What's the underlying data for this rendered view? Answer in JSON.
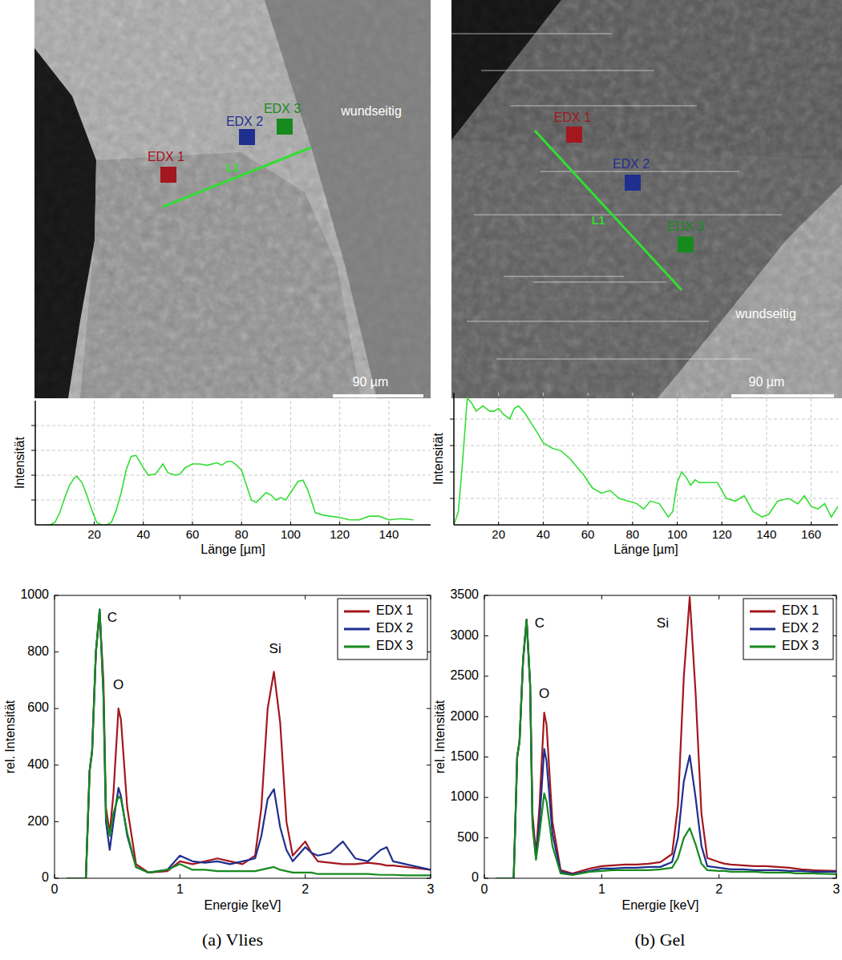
{
  "figure": {
    "panels": [
      {
        "caption": "(a) Vlies",
        "image": {
          "markers": [
            "EDX 1",
            "EDX 2",
            "EDX 3"
          ],
          "line_label": "L1",
          "side_label": "wundseitig",
          "scale_bar": "90 µm"
        }
      },
      {
        "caption": "(b) Gel",
        "image": {
          "markers": [
            "EDX 1",
            "EDX 2",
            "EDX 3"
          ],
          "line_label": "L1",
          "side_label": "wundseitig",
          "scale_bar": "90 µm"
        }
      }
    ]
  },
  "chart_data": [
    {
      "type": "line",
      "xlabel": "Länge [µm]",
      "ylabel": "Intensität",
      "color": "#33dd33",
      "grid": true,
      "tick_labels": "x",
      "xlim": [
        -4,
        157
      ],
      "xticks": [
        20,
        40,
        60,
        80,
        100,
        120,
        140
      ],
      "ylim": [
        0,
        5
      ],
      "yticks": [
        1,
        2,
        3,
        4
      ],
      "x": [
        0,
        2,
        4,
        6,
        8,
        10,
        12,
        13,
        15,
        17,
        19,
        21,
        23,
        25,
        27,
        29,
        31,
        33,
        35,
        37,
        40,
        42,
        45,
        48,
        50,
        53,
        55,
        57,
        60,
        63,
        66,
        70,
        72,
        74,
        76,
        78,
        80,
        82,
        84,
        86,
        88,
        90,
        92,
        94,
        96,
        98,
        100,
        103,
        105,
        107,
        110,
        113,
        116,
        120,
        124,
        128,
        132,
        136,
        140,
        145,
        150
      ],
      "values": [
        0,
        0,
        0.1,
        0.5,
        1.1,
        1.6,
        1.9,
        1.95,
        1.7,
        1.2,
        0.6,
        0.1,
        0,
        0,
        0.1,
        0.6,
        1.3,
        2.2,
        2.75,
        2.8,
        2.3,
        2.0,
        2.05,
        2.45,
        2.1,
        2.0,
        2.05,
        2.3,
        2.45,
        2.45,
        2.4,
        2.5,
        2.4,
        2.55,
        2.55,
        2.4,
        2.2,
        1.6,
        1.0,
        0.9,
        1.1,
        1.3,
        1.2,
        1.0,
        1.1,
        1.0,
        1.3,
        1.75,
        1.8,
        1.4,
        0.5,
        0.4,
        0.35,
        0.3,
        0.2,
        0.2,
        0.35,
        0.35,
        0.2,
        0.25,
        0.2
      ]
    },
    {
      "type": "line",
      "xlabel": "Länge [µm]",
      "ylabel": "Intensität",
      "color": "#33dd33",
      "grid": true,
      "tick_labels": "x",
      "xlim": [
        0,
        172
      ],
      "xticks": [
        20,
        40,
        60,
        80,
        100,
        120,
        140,
        160
      ],
      "ylim": [
        0,
        5
      ],
      "yticks": [
        1,
        2,
        3,
        4
      ],
      "x": [
        0,
        2,
        4,
        6,
        8,
        10,
        13,
        16,
        18,
        20,
        22,
        25,
        27,
        29,
        32,
        35,
        38,
        40,
        44,
        48,
        52,
        55,
        58,
        62,
        66,
        70,
        74,
        78,
        82,
        85,
        88,
        92,
        96,
        98,
        100,
        102,
        104,
        106,
        108,
        110,
        114,
        118,
        122,
        126,
        130,
        134,
        138,
        141,
        145,
        150,
        154,
        157,
        160,
        163,
        166,
        169,
        172
      ],
      "values": [
        0,
        0.5,
        2.5,
        4.8,
        4.6,
        4.3,
        4.5,
        4.3,
        4.3,
        4.4,
        4.2,
        4.0,
        4.4,
        4.5,
        4.2,
        3.8,
        3.4,
        3.1,
        2.9,
        2.8,
        2.5,
        2.2,
        1.9,
        1.4,
        1.2,
        1.3,
        1.0,
        0.9,
        0.8,
        0.6,
        0.9,
        0.8,
        0.3,
        0.5,
        1.6,
        2.0,
        1.8,
        1.5,
        1.7,
        1.6,
        1.6,
        1.6,
        1.0,
        0.9,
        1.1,
        0.5,
        0.3,
        0.4,
        0.9,
        1.0,
        0.8,
        1.1,
        0.7,
        0.6,
        0.8,
        0.3,
        0.7
      ]
    },
    {
      "type": "line",
      "xlabel": "Energie [keV]",
      "ylabel": "rel. Intensität",
      "legend": "upper right",
      "xlim": [
        0,
        3
      ],
      "xticks": [
        0,
        1,
        2,
        3
      ],
      "ylim": [
        0,
        1000
      ],
      "yticks": [
        0,
        200,
        400,
        600,
        800,
        1000
      ],
      "annotations": [
        {
          "text": "C",
          "x": 0.46,
          "y": 920
        },
        {
          "text": "O",
          "x": 0.51,
          "y": 680
        },
        {
          "text": "Si",
          "x": 1.76,
          "y": 810
        }
      ],
      "x": [
        0.1,
        0.25,
        0.28,
        0.3,
        0.33,
        0.36,
        0.39,
        0.41,
        0.44,
        0.47,
        0.51,
        0.53,
        0.58,
        0.65,
        0.75,
        0.9,
        1.0,
        1.1,
        1.2,
        1.3,
        1.4,
        1.5,
        1.6,
        1.65,
        1.7,
        1.75,
        1.8,
        1.85,
        1.9,
        2.0,
        2.05,
        2.1,
        2.2,
        2.3,
        2.4,
        2.5,
        2.6,
        2.65,
        2.7,
        2.8,
        3.0
      ],
      "series": [
        {
          "name": "EDX 1",
          "color": "#a3171e",
          "values": [
            0,
            0,
            380,
            450,
            800,
            940,
            700,
            250,
            160,
            300,
            600,
            560,
            250,
            50,
            20,
            25,
            60,
            50,
            60,
            70,
            60,
            50,
            80,
            250,
            600,
            730,
            550,
            200,
            80,
            130,
            90,
            60,
            55,
            50,
            50,
            55,
            50,
            45,
            45,
            40,
            30
          ]
        },
        {
          "name": "EDX 2",
          "color": "#1f2f8f",
          "values": [
            0,
            0,
            380,
            450,
            800,
            950,
            650,
            200,
            100,
            200,
            320,
            290,
            150,
            40,
            20,
            30,
            80,
            60,
            55,
            60,
            50,
            60,
            70,
            150,
            280,
            315,
            180,
            100,
            60,
            110,
            90,
            80,
            90,
            130,
            70,
            60,
            100,
            110,
            60,
            50,
            30
          ]
        },
        {
          "name": "EDX 3",
          "color": "#178a1e",
          "values": [
            0,
            0,
            380,
            450,
            800,
            950,
            650,
            220,
            150,
            230,
            290,
            280,
            160,
            40,
            20,
            30,
            50,
            30,
            30,
            25,
            25,
            25,
            25,
            30,
            35,
            40,
            30,
            25,
            20,
            20,
            20,
            15,
            15,
            15,
            15,
            15,
            12,
            12,
            12,
            10,
            10
          ]
        }
      ]
    },
    {
      "type": "line",
      "xlabel": "Energie [keV]",
      "ylabel": "rel. Intensität",
      "legend": "upper right",
      "xlim": [
        0,
        3
      ],
      "xticks": [
        0,
        1,
        2,
        3
      ],
      "ylim": [
        0,
        3500
      ],
      "yticks": [
        0,
        500,
        1000,
        1500,
        2000,
        2500,
        3000,
        3500
      ],
      "annotations": [
        {
          "text": "C",
          "x": 0.47,
          "y": 3150
        },
        {
          "text": "O",
          "x": 0.51,
          "y": 2280
        },
        {
          "text": "Si",
          "x": 1.52,
          "y": 3150
        }
      ],
      "x": [
        0.1,
        0.25,
        0.28,
        0.3,
        0.33,
        0.36,
        0.39,
        0.41,
        0.44,
        0.47,
        0.51,
        0.53,
        0.58,
        0.65,
        0.75,
        0.9,
        1.0,
        1.1,
        1.2,
        1.3,
        1.4,
        1.5,
        1.6,
        1.65,
        1.7,
        1.75,
        1.8,
        1.85,
        1.9,
        2.0,
        2.05,
        2.1,
        2.2,
        2.3,
        2.4,
        2.5,
        2.6,
        2.65,
        2.7,
        2.8,
        3.0
      ],
      "series": [
        {
          "name": "EDX 1",
          "color": "#a3171e",
          "values": [
            0,
            0,
            1500,
            1700,
            2700,
            3200,
            2400,
            800,
            300,
            900,
            2050,
            1900,
            700,
            100,
            60,
            120,
            150,
            160,
            170,
            170,
            180,
            200,
            300,
            900,
            2500,
            3480,
            2300,
            800,
            250,
            200,
            180,
            170,
            160,
            150,
            150,
            140,
            130,
            120,
            110,
            100,
            90
          ]
        },
        {
          "name": "EDX 2",
          "color": "#1f2f8f",
          "values": [
            0,
            0,
            1500,
            1700,
            2700,
            3200,
            2400,
            700,
            250,
            700,
            1600,
            1450,
            550,
            80,
            50,
            90,
            120,
            120,
            130,
            130,
            140,
            140,
            200,
            500,
            1200,
            1520,
            1000,
            400,
            150,
            130,
            120,
            110,
            110,
            100,
            100,
            100,
            90,
            90,
            90,
            80,
            80
          ]
        },
        {
          "name": "EDX 3",
          "color": "#178a1e",
          "values": [
            0,
            0,
            1500,
            1700,
            2700,
            3200,
            2400,
            650,
            230,
            550,
            1050,
            950,
            400,
            60,
            40,
            80,
            90,
            100,
            100,
            100,
            100,
            110,
            130,
            250,
            500,
            620,
            420,
            180,
            100,
            90,
            90,
            80,
            80,
            80,
            70,
            70,
            70,
            60,
            60,
            60,
            50
          ]
        }
      ]
    }
  ]
}
